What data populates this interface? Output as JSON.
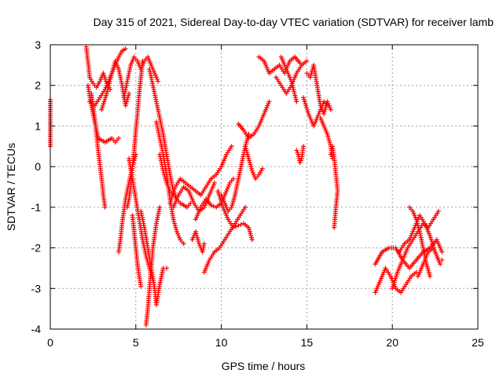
{
  "chart_data": {
    "type": "scatter",
    "title": "Day 315 of 2021, Sidereal Day-to-day VTEC variation (SDTVAR) for receiver lamb",
    "xlabel": "GPS time / hours",
    "ylabel": "SDTVAR / TECUs",
    "xlim": [
      0,
      25
    ],
    "ylim": [
      -4,
      3
    ],
    "x_ticks": [
      "0",
      "5",
      "10",
      "15",
      "20",
      "25"
    ],
    "y_ticks": [
      "-4",
      "-3",
      "-2",
      "-1",
      "0",
      "1",
      "2",
      "3"
    ],
    "grid": true,
    "marker": "+",
    "color": "#ff0000",
    "series": [
      {
        "x": [
          0.0,
          0.0,
          0.0,
          0.0,
          0.0
        ],
        "y": [
          1.65,
          1.2,
          1.05,
          0.55,
          0.5
        ]
      },
      {
        "x": [
          2.1,
          2.2,
          2.3,
          2.5,
          2.7,
          2.9,
          3.1,
          3.3,
          3.5
        ],
        "y": [
          2.95,
          2.6,
          2.2,
          2.05,
          1.95,
          2.1,
          2.3,
          2.05,
          1.9
        ]
      },
      {
        "x": [
          2.2,
          2.4,
          2.6,
          2.8,
          3.0,
          3.2,
          3.4,
          3.6,
          3.8,
          4.0
        ],
        "y": [
          2.0,
          1.5,
          1.1,
          0.7,
          0.65,
          0.6,
          0.65,
          0.7,
          0.6,
          0.7
        ]
      },
      {
        "x": [
          2.4,
          2.6,
          2.8,
          3.0,
          3.1,
          3.2
        ],
        "y": [
          1.8,
          1.2,
          0.4,
          -0.3,
          -0.7,
          -1.0
        ]
      },
      {
        "x": [
          2.3,
          2.6,
          2.9,
          3.2,
          3.5,
          3.8,
          4.0,
          4.2,
          4.4
        ],
        "y": [
          1.6,
          1.5,
          1.7,
          1.9,
          2.2,
          2.5,
          2.7,
          2.85,
          2.9
        ]
      },
      {
        "x": [
          3.0,
          3.3,
          3.6,
          3.8,
          4.0,
          4.2,
          4.4,
          4.6
        ],
        "y": [
          1.4,
          1.8,
          2.3,
          2.6,
          2.4,
          2.0,
          1.5,
          1.8
        ]
      },
      {
        "x": [
          4.0,
          4.1,
          4.2,
          4.3,
          4.4,
          4.6,
          4.8,
          5.0
        ],
        "y": [
          -2.1,
          -1.8,
          -1.4,
          -1.1,
          -0.8,
          -0.4,
          0.0,
          0.3
        ]
      },
      {
        "x": [
          4.3,
          4.5,
          4.7,
          4.9,
          5.1,
          5.3,
          5.5,
          5.7,
          5.9,
          6.1,
          6.3
        ],
        "y": [
          1.7,
          2.1,
          2.5,
          2.7,
          2.6,
          2.4,
          2.6,
          2.7,
          2.5,
          2.3,
          2.1
        ]
      },
      {
        "x": [
          4.5,
          4.6,
          4.7,
          4.8,
          4.9,
          5.0,
          5.1,
          5.2,
          5.3,
          5.4
        ],
        "y": [
          -1.0,
          -0.8,
          -0.5,
          0.0,
          0.4,
          0.9,
          1.3,
          1.8,
          2.2,
          2.6
        ]
      },
      {
        "x": [
          4.6,
          4.8,
          5.0,
          5.2,
          5.4,
          5.6,
          5.8,
          6.0
        ],
        "y": [
          0.2,
          -0.3,
          -0.8,
          -1.3,
          -1.8,
          -2.2,
          -2.5,
          -2.8
        ]
      },
      {
        "x": [
          4.8,
          4.9,
          5.0,
          5.1,
          5.2,
          5.3
        ],
        "y": [
          -1.2,
          -1.6,
          -2.0,
          -2.4,
          -2.7,
          -2.95
        ]
      },
      {
        "x": [
          5.3,
          5.5,
          5.7,
          5.9,
          6.1,
          6.2,
          6.4,
          6.6,
          6.8
        ],
        "y": [
          -1.1,
          -1.5,
          -2.0,
          -2.5,
          -3.0,
          -3.4,
          -2.9,
          -2.5,
          -2.5
        ]
      },
      {
        "x": [
          5.6,
          5.7,
          5.8,
          5.9,
          6.0,
          6.2,
          6.4
        ],
        "y": [
          -3.9,
          -3.5,
          -3.0,
          -2.5,
          -2.0,
          -1.4,
          -1.0
        ]
      },
      {
        "x": [
          5.8,
          6.0,
          6.2,
          6.4,
          6.6,
          6.8,
          7.0,
          7.2,
          7.4
        ],
        "y": [
          2.4,
          2.0,
          1.6,
          1.2,
          0.8,
          0.3,
          -0.2,
          -0.6,
          -0.8
        ]
      },
      {
        "x": [
          6.2,
          6.4,
          6.6,
          6.8,
          7.0,
          7.2,
          7.4,
          7.6,
          7.8
        ],
        "y": [
          1.1,
          0.7,
          0.3,
          -0.2,
          -0.8,
          -1.3,
          -1.6,
          -1.8,
          -1.9
        ]
      },
      {
        "x": [
          6.4,
          6.6,
          6.8,
          7.0,
          7.2,
          7.4,
          7.6,
          7.8,
          8.0,
          8.2
        ],
        "y": [
          0.3,
          -0.1,
          -0.4,
          -0.6,
          -0.7,
          -0.8,
          -0.9,
          -0.95,
          -1.0,
          -0.9
        ]
      },
      {
        "x": [
          7.0,
          7.3,
          7.6,
          7.9,
          8.2,
          8.5,
          8.8,
          9.1,
          9.4,
          9.7,
          10.0,
          10.3,
          10.6
        ],
        "y": [
          -0.9,
          -0.5,
          -0.3,
          -0.4,
          -0.5,
          -0.6,
          -0.7,
          -0.5,
          -0.3,
          -0.2,
          0.0,
          0.3,
          0.5
        ]
      },
      {
        "x": [
          7.2,
          7.5,
          7.8,
          8.1,
          8.4,
          8.7,
          9.0,
          9.3,
          9.6
        ],
        "y": [
          -1.0,
          -0.7,
          -0.5,
          -0.6,
          -0.9,
          -1.1,
          -1.0,
          -0.7,
          -0.4
        ]
      },
      {
        "x": [
          8.5,
          8.8,
          9.1,
          9.4,
          9.7,
          10.0,
          10.3,
          10.5,
          10.7
        ],
        "y": [
          -1.3,
          -1.0,
          -0.8,
          -0.95,
          -1.0,
          -0.9,
          -0.6,
          -0.4,
          -0.3
        ]
      },
      {
        "x": [
          8.3,
          8.5,
          8.7,
          8.9,
          9.0
        ],
        "y": [
          -1.8,
          -1.6,
          -1.9,
          -2.1,
          -1.9
        ]
      },
      {
        "x": [
          9.0,
          9.3,
          9.6,
          9.9,
          10.2,
          10.5,
          10.8,
          11.1,
          11.4
        ],
        "y": [
          -2.6,
          -2.3,
          -2.1,
          -2.0,
          -1.8,
          -1.6,
          -1.4,
          -1.2,
          -1.0
        ]
      },
      {
        "x": [
          9.8,
          10.1,
          10.4,
          10.7,
          11.0,
          11.3,
          11.6,
          11.8
        ],
        "y": [
          -0.6,
          -1.0,
          -1.3,
          -1.5,
          -1.45,
          -1.4,
          -1.5,
          -1.8
        ]
      },
      {
        "x": [
          10.0,
          10.2,
          10.4,
          10.6,
          10.8,
          11.0,
          11.2,
          11.4,
          11.6
        ],
        "y": [
          -0.7,
          -0.9,
          -1.1,
          -1.0,
          -0.7,
          -0.3,
          0.1,
          0.5,
          0.8
        ]
      },
      {
        "x": [
          11.0,
          11.3,
          11.6,
          11.9,
          12.2,
          12.5,
          12.8
        ],
        "y": [
          1.05,
          0.9,
          0.7,
          0.8,
          1.0,
          1.3,
          1.6
        ]
      },
      {
        "x": [
          11.4,
          11.6,
          11.8,
          12.0,
          12.2,
          12.4
        ],
        "y": [
          0.5,
          0.2,
          -0.1,
          -0.3,
          -0.2,
          -0.05
        ]
      },
      {
        "x": [
          12.2,
          12.5,
          12.8,
          13.1,
          13.4,
          13.7,
          14.0,
          14.3,
          14.6
        ],
        "y": [
          2.7,
          2.6,
          2.3,
          2.4,
          2.5,
          2.3,
          2.6,
          2.7,
          2.55
        ]
      },
      {
        "x": [
          13.2,
          13.5,
          13.8,
          14.1,
          14.4,
          14.7,
          15.0
        ],
        "y": [
          2.2,
          2.0,
          1.8,
          2.0,
          2.3,
          2.5,
          2.6
        ]
      },
      {
        "x": [
          13.5,
          13.8,
          14.1,
          14.4
        ],
        "y": [
          2.7,
          2.4,
          2.1,
          1.6
        ]
      },
      {
        "x": [
          14.4,
          14.5,
          14.6,
          14.7,
          14.8
        ],
        "y": [
          0.4,
          0.3,
          0.1,
          0.2,
          0.5
        ]
      },
      {
        "x": [
          14.8,
          15.1,
          15.4,
          15.7,
          16.0,
          16.3
        ],
        "y": [
          1.7,
          1.3,
          1.0,
          1.3,
          1.6,
          1.5
        ]
      },
      {
        "x": [
          15.0,
          15.2,
          15.4,
          15.6,
          15.8,
          16.0,
          16.2,
          16.4
        ],
        "y": [
          2.3,
          2.2,
          2.5,
          2.0,
          1.5,
          1.3,
          1.6,
          1.4
        ]
      },
      {
        "x": [
          15.8,
          16.0,
          16.2,
          16.4,
          16.5
        ],
        "y": [
          1.2,
          1.0,
          0.8,
          0.5,
          0.2
        ]
      },
      {
        "x": [
          16.4,
          16.5,
          16.6,
          16.7,
          16.8,
          16.7,
          16.6
        ],
        "y": [
          0.3,
          0.5,
          0.2,
          -0.2,
          -0.6,
          -1.0,
          -1.5
        ]
      },
      {
        "x": [
          19.0,
          19.3,
          19.6,
          19.9,
          20.2,
          20.5,
          20.8,
          21.1,
          21.4
        ],
        "y": [
          -3.1,
          -2.8,
          -2.5,
          -2.7,
          -3.0,
          -3.1,
          -2.9,
          -2.7,
          -2.6
        ]
      },
      {
        "x": [
          19.0,
          19.4,
          19.8,
          20.2,
          20.6,
          21.0,
          21.4,
          21.8,
          22.2,
          22.6,
          22.9
        ],
        "y": [
          -2.4,
          -2.1,
          -2.0,
          -2.0,
          -2.3,
          -2.5,
          -2.3,
          -2.1,
          -2.0,
          -1.8,
          -2.1
        ]
      },
      {
        "x": [
          20.0,
          20.3,
          20.6,
          20.9,
          21.2,
          21.5,
          21.8,
          22.1,
          22.4,
          22.7
        ],
        "y": [
          -3.0,
          -2.6,
          -2.3,
          -2.0,
          -1.8,
          -1.6,
          -1.4,
          -1.5,
          -1.3,
          -1.1
        ]
      },
      {
        "x": [
          20.4,
          20.7,
          21.0,
          21.3,
          21.6,
          21.9,
          22.2,
          22.5,
          22.8
        ],
        "y": [
          -2.1,
          -1.9,
          -1.8,
          -1.5,
          -1.2,
          -1.4,
          -1.7,
          -2.1,
          -2.4
        ]
      },
      {
        "x": [
          21.0,
          21.2,
          21.4,
          21.6,
          21.8,
          22.0,
          22.2
        ],
        "y": [
          -1.0,
          -1.1,
          -1.3,
          -1.6,
          -2.0,
          -2.4,
          -2.7
        ]
      },
      {
        "x": [
          21.5,
          21.8,
          22.1,
          22.4,
          22.7,
          22.9
        ],
        "y": [
          -2.7,
          -2.4,
          -2.1,
          -2.0,
          -2.3,
          -2.3
        ]
      }
    ]
  }
}
